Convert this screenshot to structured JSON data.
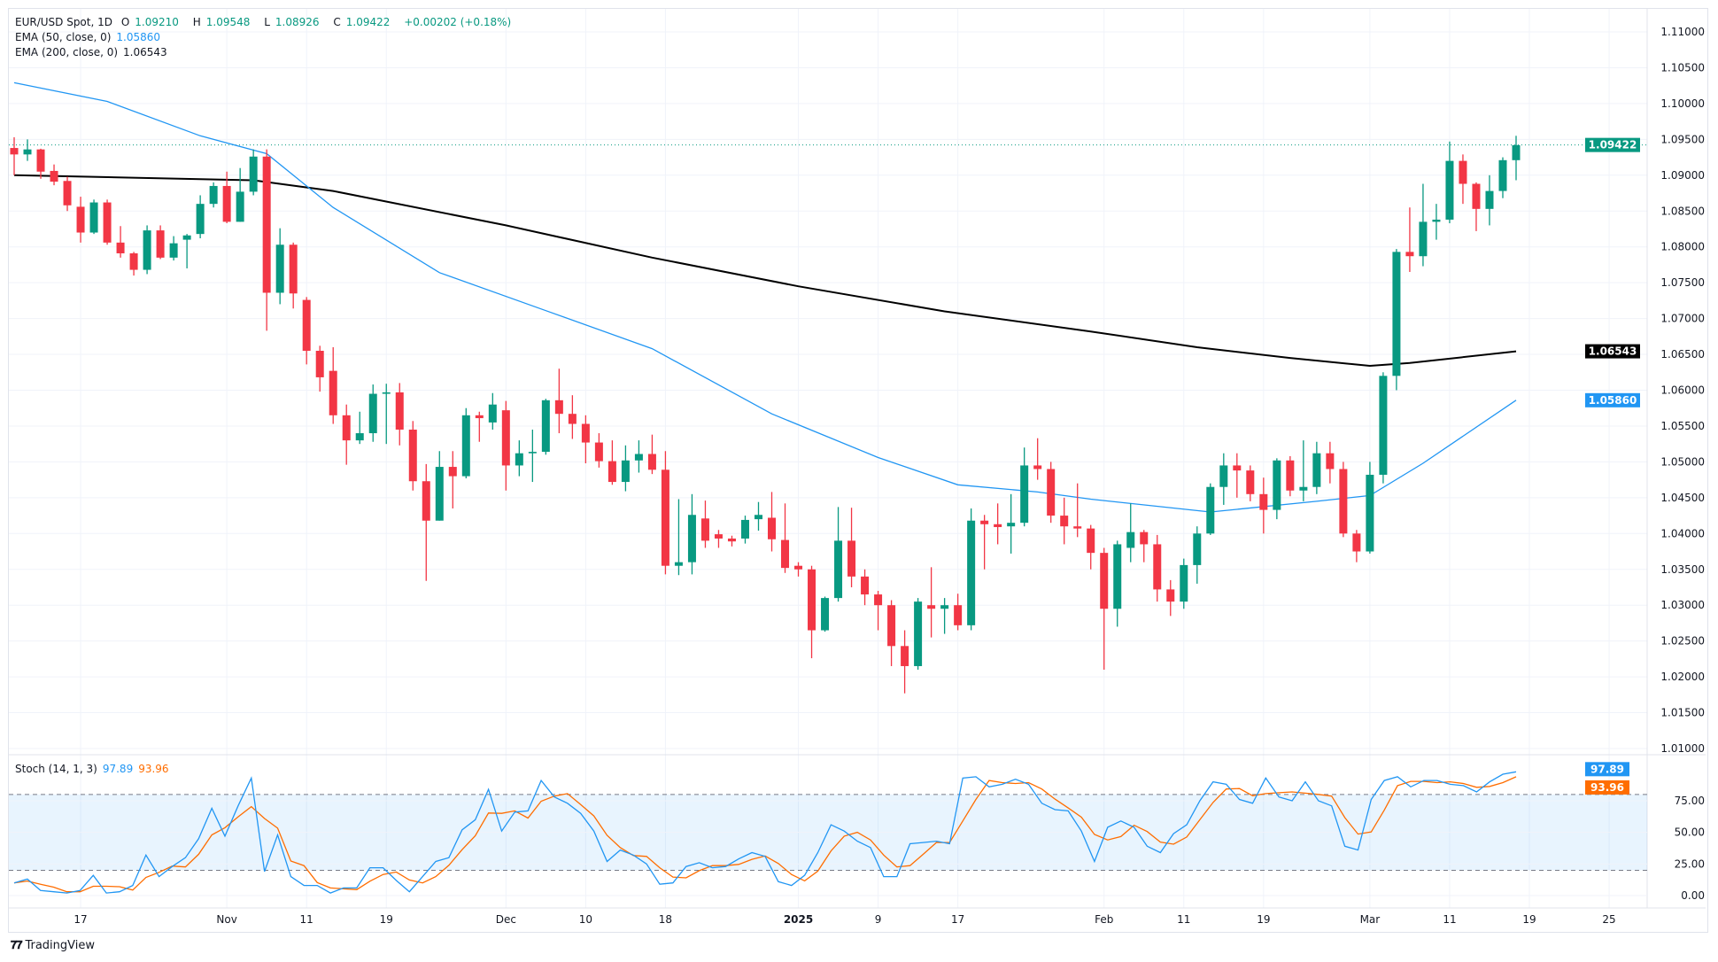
{
  "header": {
    "symbol": "EUR/USD Spot, 1D",
    "open_label": "O",
    "open": "1.09210",
    "high_label": "H",
    "high": "1.09548",
    "low_label": "L",
    "low": "1.08926",
    "close_label": "C",
    "close": "1.09422",
    "change": "+0.00202 (+0.18%)",
    "ema50_label": "EMA (50, close, 0)",
    "ema50_value": "1.05860",
    "ema200_label": "EMA (200, close, 0)",
    "ema200_value": "1.06543",
    "stoch_label": "Stoch (14, 1, 3)",
    "stoch_k": "97.89",
    "stoch_d": "93.96"
  },
  "brand": "TradingView",
  "colors": {
    "up": "#089981",
    "down": "#f23645",
    "ema50": "#2196f3",
    "ema200": "#000000",
    "stoch_k": "#2196f3",
    "stoch_d": "#ff6d00",
    "band": "#2196f3"
  },
  "chart_data": [
    {
      "type": "candlestick",
      "title": "EUR/USD Spot, 1D",
      "ylim": [
        1.008,
        1.112
      ],
      "y_ticks": [
        "1.11000",
        "1.10500",
        "1.10000",
        "1.09500",
        "1.09000",
        "1.08500",
        "1.08000",
        "1.07500",
        "1.07000",
        "1.06500",
        "1.06000",
        "1.05500",
        "1.05000",
        "1.04500",
        "1.04000",
        "1.03500",
        "1.03000",
        "1.02500",
        "1.02000",
        "1.01500",
        "1.01000"
      ],
      "x_ticks": [
        {
          "label": "17",
          "bar": 5
        },
        {
          "label": "Nov",
          "bar": 16
        },
        {
          "label": "11",
          "bar": 22
        },
        {
          "label": "19",
          "bar": 28
        },
        {
          "label": "Dec",
          "bar": 37
        },
        {
          "label": "10",
          "bar": 43
        },
        {
          "label": "18",
          "bar": 49
        },
        {
          "label": "2025",
          "bar": 59,
          "bold": true
        },
        {
          "label": "9",
          "bar": 65
        },
        {
          "label": "17",
          "bar": 71
        },
        {
          "label": "Feb",
          "bar": 82
        },
        {
          "label": "11",
          "bar": 88
        },
        {
          "label": "19",
          "bar": 94
        },
        {
          "label": "Mar",
          "bar": 102
        },
        {
          "label": "11",
          "bar": 108
        },
        {
          "label": "19",
          "bar": 114
        },
        {
          "label": "25",
          "bar": 120
        }
      ],
      "price_badges": [
        {
          "value": "1.09422",
          "price": 1.09422,
          "color": "#089981"
        },
        {
          "value": "1.06543",
          "price": 1.06543,
          "color": "#000000"
        },
        {
          "value": "1.05860",
          "price": 1.0586,
          "color": "#2196f3"
        }
      ],
      "last_price_line": 1.09422,
      "ohlc": [
        [
          1.0938,
          1.0953,
          1.09,
          1.0929
        ],
        [
          1.0929,
          1.095,
          1.092,
          1.0936
        ],
        [
          1.0936,
          1.0937,
          1.0895,
          1.0905
        ],
        [
          1.0906,
          1.0915,
          1.0886,
          1.0891
        ],
        [
          1.0892,
          1.0898,
          1.085,
          1.0858
        ],
        [
          1.0856,
          1.087,
          1.0806,
          1.082
        ],
        [
          1.082,
          1.0866,
          1.0818,
          1.0862
        ],
        [
          1.0862,
          1.0866,
          1.0803,
          1.0806
        ],
        [
          1.0806,
          1.0829,
          1.0785,
          1.0791
        ],
        [
          1.0791,
          1.0793,
          1.076,
          1.0768
        ],
        [
          1.0768,
          1.083,
          1.0762,
          1.0823
        ],
        [
          1.0823,
          1.083,
          1.0783,
          1.0785
        ],
        [
          1.0785,
          1.0815,
          1.0781,
          1.0805
        ],
        [
          1.081,
          1.0818,
          1.077,
          1.0816
        ],
        [
          1.0818,
          1.0872,
          1.0812,
          1.086
        ],
        [
          1.086,
          1.089,
          1.0855,
          1.0885
        ],
        [
          1.0885,
          1.0905,
          1.0833,
          1.0835
        ],
        [
          1.0835,
          1.091,
          1.0835,
          1.0877
        ],
        [
          1.0877,
          1.0936,
          1.0872,
          1.0926
        ],
        [
          1.0926,
          1.0936,
          1.0683,
          1.0736
        ],
        [
          1.0736,
          1.0826,
          1.072,
          1.0803
        ],
        [
          1.0803,
          1.0806,
          1.0714,
          1.0735
        ],
        [
          1.0726,
          1.073,
          1.0636,
          1.0655
        ],
        [
          1.0655,
          1.0662,
          1.0598,
          1.0618
        ],
        [
          1.0627,
          1.066,
          1.0553,
          1.0565
        ],
        [
          1.0565,
          1.058,
          1.0496,
          1.053
        ],
        [
          1.053,
          1.057,
          1.0525,
          1.054
        ],
        [
          1.054,
          1.0608,
          1.0528,
          1.0595
        ],
        [
          1.0595,
          1.0609,
          1.0525,
          1.0597
        ],
        [
          1.0597,
          1.061,
          1.0523,
          1.0545
        ],
        [
          1.0545,
          1.0557,
          1.046,
          1.0473
        ],
        [
          1.0473,
          1.0497,
          1.0334,
          1.0418
        ],
        [
          1.0418,
          1.0515,
          1.0418,
          1.0493
        ],
        [
          1.0493,
          1.0515,
          1.0435,
          1.048
        ],
        [
          1.048,
          1.0575,
          1.0477,
          1.0565
        ],
        [
          1.0565,
          1.057,
          1.0528,
          1.0561
        ],
        [
          1.0555,
          1.0596,
          1.0545,
          1.058
        ],
        [
          1.0572,
          1.0585,
          1.046,
          1.0495
        ],
        [
          1.0495,
          1.053,
          1.048,
          1.0512
        ],
        [
          1.0512,
          1.0545,
          1.0472,
          1.0514
        ],
        [
          1.0514,
          1.0588,
          1.051,
          1.0586
        ],
        [
          1.0586,
          1.063,
          1.054,
          1.0567
        ],
        [
          1.0567,
          1.0593,
          1.0532,
          1.0553
        ],
        [
          1.0553,
          1.0565,
          1.0498,
          1.0527
        ],
        [
          1.0527,
          1.054,
          1.0492,
          1.0501
        ],
        [
          1.0501,
          1.053,
          1.0468,
          1.0472
        ],
        [
          1.0472,
          1.0523,
          1.0459,
          1.0502
        ],
        [
          1.0502,
          1.053,
          1.0485,
          1.0511
        ],
        [
          1.0511,
          1.0538,
          1.0483,
          1.0489
        ],
        [
          1.0489,
          1.0515,
          1.0343,
          1.0355
        ],
        [
          1.0355,
          1.0448,
          1.0342,
          1.036
        ],
        [
          1.036,
          1.0455,
          1.0343,
          1.0426
        ],
        [
          1.0421,
          1.0446,
          1.038,
          1.039
        ],
        [
          1.0399,
          1.0405,
          1.038,
          1.0393
        ],
        [
          1.0393,
          1.0397,
          1.0382,
          1.0389
        ],
        [
          1.0393,
          1.0425,
          1.0386,
          1.0419
        ],
        [
          1.042,
          1.0444,
          1.0404,
          1.0426
        ],
        [
          1.0422,
          1.0458,
          1.0375,
          1.0392
        ],
        [
          1.0391,
          1.0442,
          1.0345,
          1.0352
        ],
        [
          1.0355,
          1.036,
          1.034,
          1.035
        ],
        [
          1.035,
          1.0355,
          1.0226,
          1.0265
        ],
        [
          1.0265,
          1.0312,
          1.0263,
          1.031
        ],
        [
          1.031,
          1.0437,
          1.0305,
          1.039
        ],
        [
          1.039,
          1.0436,
          1.0325,
          1.034
        ],
        [
          1.034,
          1.035,
          1.03,
          1.0315
        ],
        [
          1.0315,
          1.032,
          1.0265,
          1.03
        ],
        [
          1.03,
          1.0307,
          1.0215,
          1.0243
        ],
        [
          1.0243,
          1.0265,
          1.0177,
          1.0215
        ],
        [
          1.0215,
          1.031,
          1.021,
          1.0305
        ],
        [
          1.03,
          1.0353,
          1.0255,
          1.0295
        ],
        [
          1.0295,
          1.031,
          1.026,
          1.03
        ],
        [
          1.03,
          1.0316,
          1.0265,
          1.0272
        ],
        [
          1.0272,
          1.0435,
          1.0265,
          1.0418
        ],
        [
          1.0418,
          1.0426,
          1.035,
          1.0413
        ],
        [
          1.0413,
          1.0442,
          1.0385,
          1.0409
        ],
        [
          1.041,
          1.0455,
          1.0372,
          1.0415
        ],
        [
          1.0415,
          1.052,
          1.041,
          1.0495
        ],
        [
          1.0495,
          1.0533,
          1.0475,
          1.049
        ],
        [
          1.049,
          1.05,
          1.0415,
          1.0425
        ],
        [
          1.0425,
          1.045,
          1.0385,
          1.041
        ],
        [
          1.041,
          1.047,
          1.0395,
          1.0407
        ],
        [
          1.0407,
          1.0412,
          1.035,
          1.0373
        ],
        [
          1.0373,
          1.038,
          1.021,
          1.0295
        ],
        [
          1.0295,
          1.039,
          1.027,
          1.0385
        ],
        [
          1.038,
          1.0442,
          1.036,
          1.0402
        ],
        [
          1.0402,
          1.0405,
          1.036,
          1.0385
        ],
        [
          1.0385,
          1.0398,
          1.0305,
          1.0322
        ],
        [
          1.0322,
          1.0335,
          1.0285,
          1.0305
        ],
        [
          1.0305,
          1.0365,
          1.0295,
          1.0356
        ],
        [
          1.0356,
          1.041,
          1.033,
          1.04
        ],
        [
          1.04,
          1.047,
          1.0398,
          1.0465
        ],
        [
          1.0465,
          1.0512,
          1.044,
          1.0495
        ],
        [
          1.0495,
          1.0512,
          1.045,
          1.0488
        ],
        [
          1.0488,
          1.0495,
          1.0445,
          1.0455
        ],
        [
          1.0455,
          1.0478,
          1.04,
          1.0433
        ],
        [
          1.0433,
          1.0505,
          1.042,
          1.0502
        ],
        [
          1.0502,
          1.0508,
          1.0452,
          1.046
        ],
        [
          1.046,
          1.053,
          1.0445,
          1.0465
        ],
        [
          1.0465,
          1.0528,
          1.0455,
          1.0512
        ],
        [
          1.0512,
          1.0528,
          1.047,
          1.049
        ],
        [
          1.049,
          1.05,
          1.0395,
          1.04
        ],
        [
          1.04,
          1.0405,
          1.036,
          1.0375
        ],
        [
          1.0375,
          1.05,
          1.0372,
          1.0482
        ],
        [
          1.0482,
          1.0625,
          1.047,
          1.062
        ],
        [
          1.062,
          1.0797,
          1.06,
          1.0793
        ],
        [
          1.0793,
          1.0855,
          1.0765,
          1.0787
        ],
        [
          1.0787,
          1.0888,
          1.0773,
          1.0835
        ],
        [
          1.0835,
          1.086,
          1.081,
          1.0838
        ],
        [
          1.0838,
          1.0947,
          1.0833,
          1.092
        ],
        [
          1.092,
          1.0929,
          1.086,
          1.0888
        ],
        [
          1.0888,
          1.089,
          1.0822,
          1.0853
        ],
        [
          1.0853,
          1.09,
          1.083,
          1.0878
        ],
        [
          1.0878,
          1.0925,
          1.0868,
          1.0921
        ],
        [
          1.0921,
          1.0955,
          1.0893,
          1.0942
        ]
      ],
      "ema50": [
        [
          0,
          1.1029
        ],
        [
          7,
          1.1003
        ],
        [
          14,
          1.0955
        ],
        [
          19,
          1.093
        ],
        [
          24,
          1.0855
        ],
        [
          32,
          1.0764
        ],
        [
          40,
          1.0711
        ],
        [
          48,
          1.0658
        ],
        [
          57,
          1.0567
        ],
        [
          65,
          1.0506
        ],
        [
          71,
          1.0468
        ],
        [
          77,
          1.0458
        ],
        [
          81,
          1.0448
        ],
        [
          90,
          1.043
        ],
        [
          98,
          1.0445
        ],
        [
          102,
          1.0453
        ],
        [
          106,
          1.0498
        ],
        [
          113,
          1.0586
        ]
      ],
      "ema200": [
        [
          0,
          1.09
        ],
        [
          18,
          1.0893
        ],
        [
          24,
          1.0878
        ],
        [
          37,
          1.083
        ],
        [
          48,
          1.0785
        ],
        [
          59,
          1.0745
        ],
        [
          70,
          1.071
        ],
        [
          81,
          1.0682
        ],
        [
          89,
          1.066
        ],
        [
          96,
          1.0645
        ],
        [
          102,
          1.0634
        ],
        [
          105,
          1.0638
        ],
        [
          113,
          1.06543
        ]
      ]
    },
    {
      "type": "line",
      "title": "Stoch (14, 1, 3)",
      "ylim": [
        -8,
        112
      ],
      "y_ticks": [
        "75.00",
        "50.00",
        "25.00",
        "0.00"
      ],
      "bands": [
        20,
        80
      ],
      "badges": [
        {
          "value": "97.89",
          "color": "#2196f3"
        },
        {
          "value": "93.96",
          "color": "#ff6d00"
        }
      ],
      "k": [
        10,
        13,
        4,
        3,
        2,
        4,
        16,
        2,
        3,
        8,
        32,
        15,
        23,
        30,
        45,
        69,
        47,
        71,
        93,
        19,
        48,
        15,
        8,
        8,
        2,
        6,
        6,
        22,
        22,
        12,
        3,
        15,
        27,
        30,
        52,
        60,
        84,
        51,
        66,
        67,
        91,
        78,
        73,
        65,
        51,
        27,
        36,
        32,
        25,
        9,
        10,
        23,
        26,
        22,
        23,
        29,
        34,
        31,
        11,
        8,
        16,
        34,
        56,
        51,
        43,
        38,
        15,
        15,
        41,
        42,
        43,
        41,
        93,
        94,
        86,
        88,
        92,
        88,
        73,
        68,
        67,
        51,
        27,
        54,
        59,
        54,
        39,
        34,
        49,
        56,
        75,
        90,
        88,
        76,
        73,
        93,
        78,
        75,
        90,
        75,
        71,
        39,
        36,
        76,
        91,
        94,
        86,
        91,
        91,
        88,
        87,
        82,
        90,
        96,
        97.89
      ],
      "d_last": 93.96
    }
  ]
}
